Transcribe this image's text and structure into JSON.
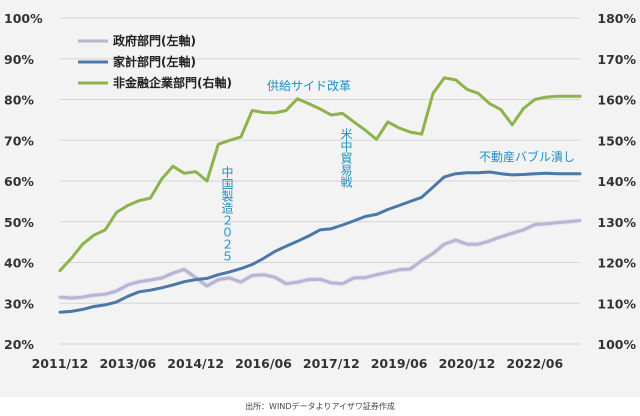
{
  "chart_data": {
    "type": "line",
    "title": "",
    "xlabel": "",
    "ylabel": "",
    "x_tick_labels": [
      "2011/12",
      "2013/06",
      "2014/12",
      "2016/06",
      "2017/12",
      "2019/06",
      "2020/12",
      "2022/06"
    ],
    "x_ticks_quarter_index": [
      0,
      6,
      12,
      18,
      24,
      30,
      36,
      42
    ],
    "x_range_quarter_index": [
      0,
      46
    ],
    "left_axis": {
      "ticks": [
        "20%",
        "30%",
        "40%",
        "50%",
        "60%",
        "70%",
        "80%",
        "90%",
        "100%"
      ],
      "ylim": [
        20,
        100
      ]
    },
    "right_axis": {
      "ticks": [
        "100%",
        "110%",
        "120%",
        "130%",
        "140%",
        "150%",
        "160%",
        "170%",
        "180%"
      ],
      "ylim": [
        100,
        180
      ]
    },
    "grid": true,
    "legend_position": "top-left",
    "series": [
      {
        "name": "政府部門(左軸)",
        "axis": "left",
        "color": "#b8b4d4",
        "values": [
          31.5,
          31.3,
          31.5,
          32.0,
          32.2,
          33.0,
          34.5,
          35.3,
          35.7,
          36.2,
          37.4,
          38.3,
          36.3,
          34.2,
          35.8,
          36.2,
          35.2,
          36.8,
          37.0,
          36.4,
          34.8,
          35.2,
          35.8,
          35.9,
          35.0,
          34.8,
          36.2,
          36.3,
          37.0,
          37.6,
          38.2,
          38.4,
          40.5,
          42.2,
          44.5,
          45.5,
          44.5,
          44.5,
          45.3,
          46.3,
          47.2,
          48.0,
          49.3,
          49.5,
          49.8,
          50.0,
          50.3
        ]
      },
      {
        "name": "家計部門(左軸)",
        "axis": "left",
        "color": "#4a78a8",
        "values": [
          27.8,
          28.0,
          28.5,
          29.2,
          29.6,
          30.3,
          31.7,
          32.8,
          33.2,
          33.8,
          34.5,
          35.3,
          35.8,
          36.1,
          37.0,
          37.7,
          38.5,
          39.5,
          41.0,
          42.7,
          44.0,
          45.2,
          46.5,
          48.0,
          48.3,
          49.2,
          50.2,
          51.3,
          51.8,
          53.0,
          54.0,
          55.0,
          56.0,
          58.5,
          61.0,
          61.8,
          62.0,
          62.0,
          62.2,
          61.8,
          61.5,
          61.6,
          61.8,
          61.9,
          61.8,
          61.8,
          61.8
        ]
      },
      {
        "name": "非金融企業部門(右軸)",
        "axis": "right",
        "color": "#8db34a",
        "values": [
          118.0,
          121.0,
          124.5,
          126.7,
          128.0,
          132.3,
          134.0,
          135.2,
          135.8,
          140.5,
          143.6,
          141.9,
          142.3,
          140.0,
          149.0,
          150.0,
          150.8,
          157.3,
          156.8,
          156.7,
          157.3,
          160.2,
          159.0,
          157.7,
          156.2,
          156.6,
          154.5,
          152.5,
          150.2,
          154.5,
          153.0,
          152.0,
          151.5,
          161.5,
          165.3,
          164.8,
          162.5,
          161.5,
          159.0,
          157.5,
          153.8,
          157.8,
          160.0,
          160.6,
          160.8,
          160.8,
          160.8
        ]
      }
    ],
    "annotations": [
      {
        "text": "供給サイド改革",
        "orientation": "horizontal"
      },
      {
        "text": "中国製造２０２５",
        "orientation": "vertical"
      },
      {
        "text": "米中貿易戦",
        "orientation": "vertical"
      },
      {
        "text": "不動産バブル潰し",
        "orientation": "horizontal"
      }
    ],
    "source_note": "出所：WINDデータよりアイザワ証券作成"
  }
}
